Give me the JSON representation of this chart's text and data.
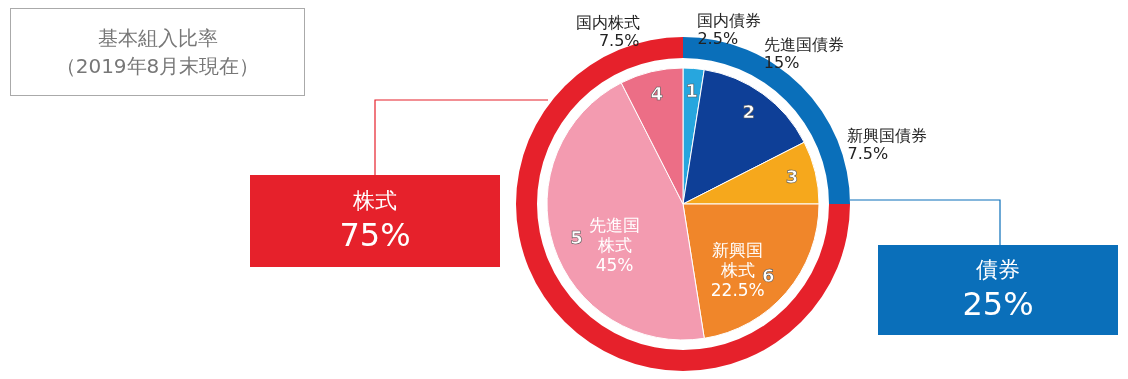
{
  "chart_data": [
    {
      "type": "pie",
      "categories": [
        "国内債券",
        "先進国債券",
        "新興国債券",
        "新興国株式",
        "先進国株式",
        "国内株式"
      ],
      "values": [
        2.5,
        15,
        7.5,
        22.5,
        45,
        7.5
      ],
      "colors": [
        "#27a6de",
        "#0e3f97",
        "#f6a81c",
        "#f0862a",
        "#f39bb0",
        "#ec6e86"
      ],
      "value_labels": [
        "2.5%",
        "15%",
        "7.5%",
        "22.5%",
        "45%",
        "7.5%"
      ],
      "annotations": [
        "1",
        "2",
        "3",
        "6",
        "5",
        "4"
      ]
    },
    {
      "type": "donut",
      "title": "基本組入比率",
      "subtitle": "（2019年8月末現在）",
      "categories": [
        "債券",
        "株式"
      ],
      "values": [
        25,
        75
      ],
      "colors": [
        "#0a6fba",
        "#e6212b"
      ],
      "value_labels": [
        "25%",
        "75%"
      ]
    }
  ]
}
